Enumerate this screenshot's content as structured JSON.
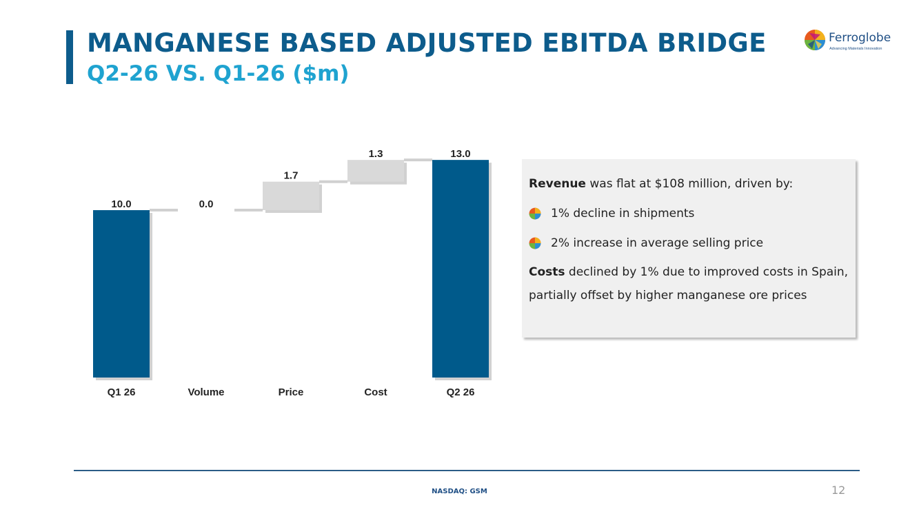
{
  "header": {
    "title": "MANGANESE BASED ADJUSTED EBITDA BRIDGE",
    "subtitle": "Q2-26 VS. Q1-26 ($m)"
  },
  "logo": {
    "name": "Ferroglobe",
    "tagline": "Advancing Materials Innovation",
    "icon": "ferroglobe-globe-icon"
  },
  "chart_data": {
    "type": "bar",
    "subtype": "waterfall",
    "categories": [
      "Q1 26",
      "Volume",
      "Price",
      "Cost",
      "Q2 26"
    ],
    "values": [
      10.0,
      0.0,
      1.7,
      1.3,
      13.0
    ],
    "value_labels": [
      "10.0",
      "0.0",
      "1.7",
      "1.3",
      "13.0"
    ],
    "kinds": [
      "total",
      "delta",
      "delta",
      "delta",
      "total"
    ],
    "title": "",
    "xlabel": "",
    "ylabel": "",
    "ylim": [
      0,
      13.5
    ],
    "grid": false,
    "legend": "none",
    "colors": {
      "total": "#005a8b",
      "delta": "#d9d9d9"
    }
  },
  "commentary": {
    "revenue_label": "Revenue",
    "revenue_text": " was flat at $108 million, driven by:",
    "bullets": [
      "1% decline in shipments",
      "2% increase in average selling price"
    ],
    "bullet_icon": "ferroglobe-globe-icon",
    "costs_label": "Costs",
    "costs_text": " declined by 1% due to improved costs in Spain, partially offset by higher manganese ore prices"
  },
  "footer": {
    "ticker": "NASDAQ: GSM",
    "page_number": "12"
  }
}
